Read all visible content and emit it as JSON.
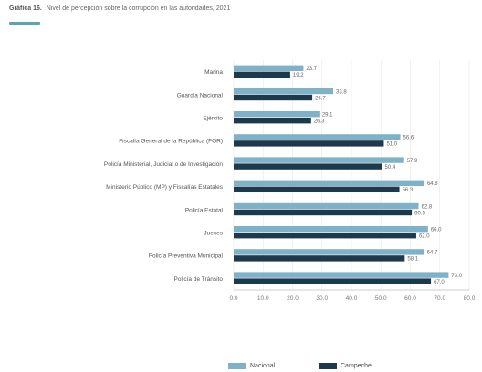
{
  "header": {
    "label": "Gráfica 16.",
    "title": "Nivel de percepción sobre la corrupción en las autoridades, 2021"
  },
  "colors": {
    "accent": "#5ba3b5",
    "series_nacional": "#7fb2c8",
    "series_campeche": "#1d3a4d",
    "grid": "#e6e6e6",
    "axis": "#bdbdbd"
  },
  "legend": [
    {
      "label": "Nacional"
    },
    {
      "label": "Campeche"
    }
  ],
  "chart_data": {
    "type": "bar",
    "orientation": "horizontal",
    "title": "Nivel de percepción sobre la corrupción en las autoridades, 2021",
    "xlabel": "",
    "ylabel": "",
    "xlim": [
      0,
      80
    ],
    "xticks": [
      "0.0",
      "10.0",
      "20.0",
      "30.0",
      "40.0",
      "50.0",
      "60.0",
      "70.0",
      "80.0"
    ],
    "grid": true,
    "legend_position": "bottom",
    "categories": [
      "Marina",
      "Guardia Nacional",
      "Ejército",
      "Fiscalía General de la República (FGR)",
      "Policía Ministerial, Judicial o de Investigación",
      "Ministerio Público (MP) y Fiscalías Estatales",
      "Policía Estatal",
      "Jueces",
      "Policía Preventiva Municipal",
      "Policía de Tránsito"
    ],
    "series": [
      {
        "name": "Nacional",
        "values": [
          23.7,
          33.8,
          29.1,
          56.6,
          57.9,
          64.8,
          62.8,
          66.0,
          64.7,
          73.0
        ]
      },
      {
        "name": "Campeche",
        "values": [
          19.2,
          26.7,
          26.3,
          51.0,
          50.4,
          56.3,
          60.5,
          62.0,
          58.1,
          67.0
        ]
      }
    ]
  }
}
